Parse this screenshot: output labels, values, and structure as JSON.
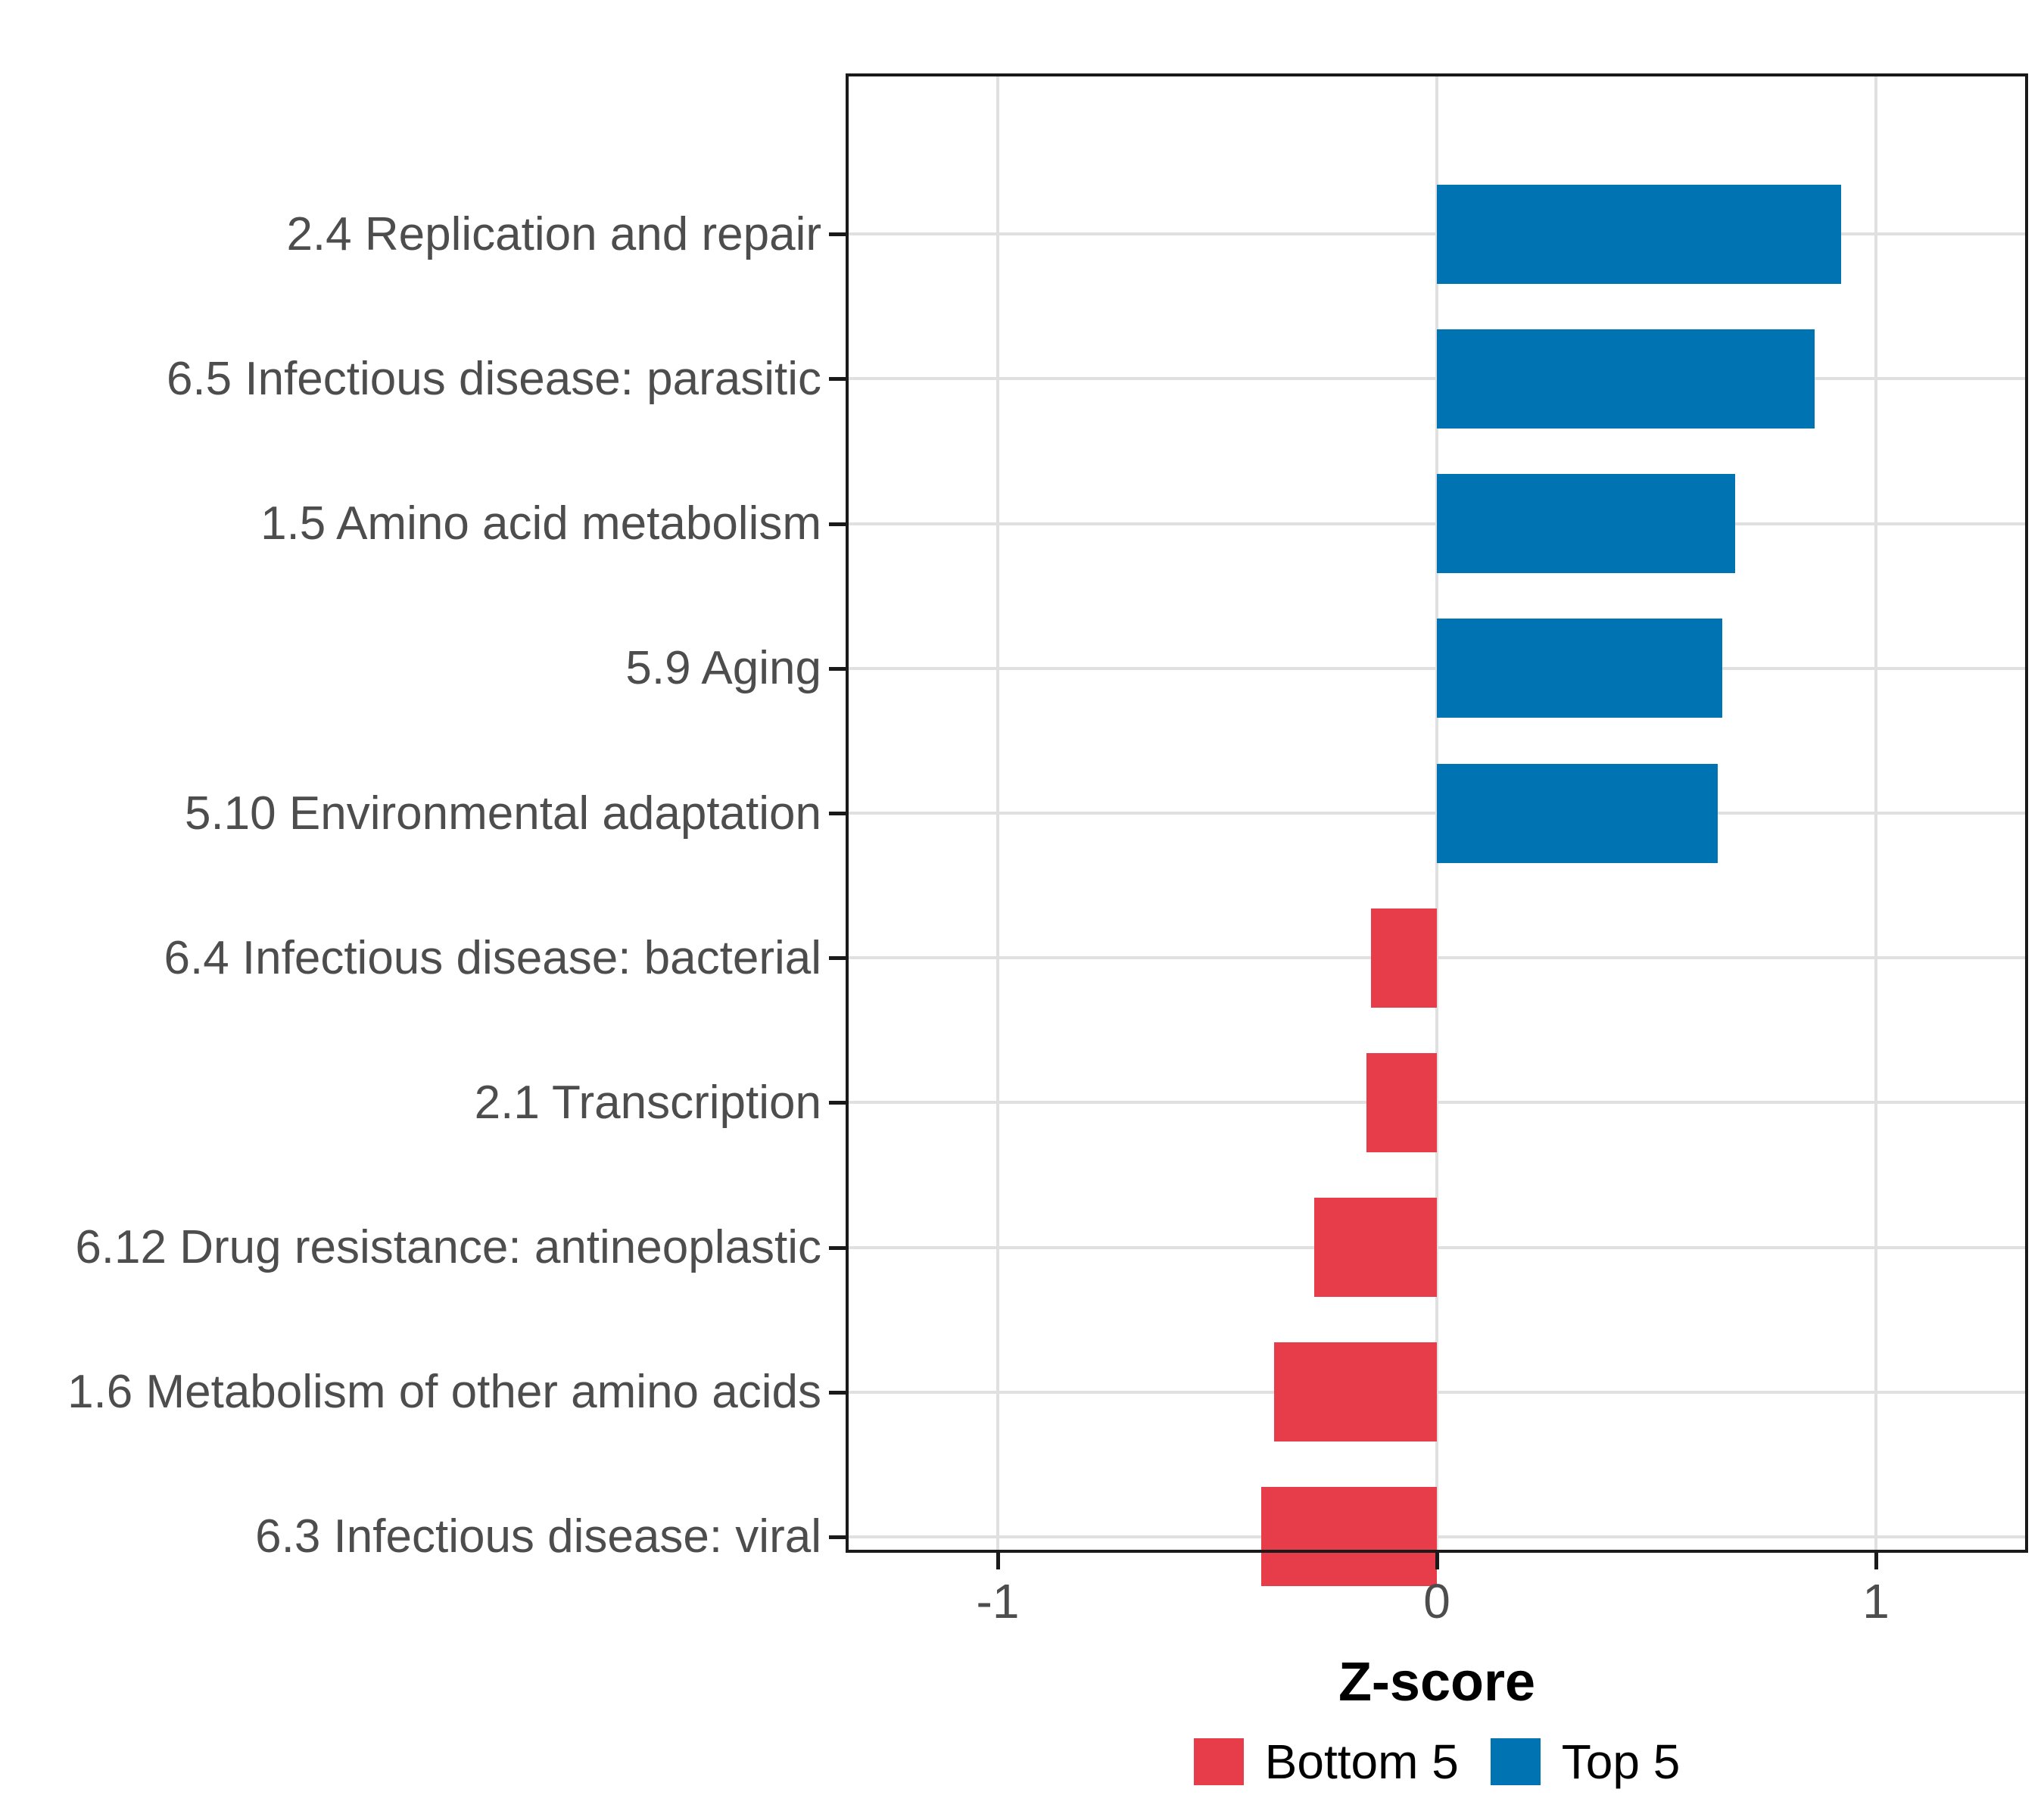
{
  "chart_data": {
    "type": "bar",
    "orientation": "horizontal",
    "title": "",
    "xlabel": "Z-score",
    "x_ticks": [
      -1,
      0,
      1
    ],
    "x_tick_labels": [
      "-1",
      "0",
      "1"
    ],
    "xlim": [
      -1.34,
      1.34
    ],
    "grid": "major-only",
    "legend_position": "bottom",
    "categories": [
      "2.4 Replication and repair",
      "6.5 Infectious disease: parasitic",
      "1.5 Amino acid metabolism",
      "5.9 Aging",
      "5.10 Environmental adaptation",
      "6.4 Infectious disease: bacterial",
      "2.1 Transcription",
      "6.12 Drug resistance: antineoplastic",
      "1.6 Metabolism of other amino acids",
      "6.3 Infectious disease: viral"
    ],
    "series": [
      {
        "name": "Z-score",
        "values": [
          0.92,
          0.86,
          0.68,
          0.65,
          0.64,
          -0.15,
          -0.16,
          -0.28,
          -0.37,
          -0.4
        ],
        "groups": [
          "Top 5",
          "Top 5",
          "Top 5",
          "Top 5",
          "Top 5",
          "Bottom 5",
          "Bottom 5",
          "Bottom 5",
          "Bottom 5",
          "Bottom 5"
        ]
      }
    ],
    "legend": [
      {
        "label": "Bottom 5",
        "color": "#E73C49"
      },
      {
        "label": "Top 5",
        "color": "#0073B2"
      }
    ]
  },
  "colors": {
    "top5": "#0073B2",
    "bottom5": "#E73C49",
    "grid": "#E0E0E0",
    "axis_text": "#4D4D4D",
    "border": "#1A1A1A",
    "background": "#FFFFFF"
  }
}
